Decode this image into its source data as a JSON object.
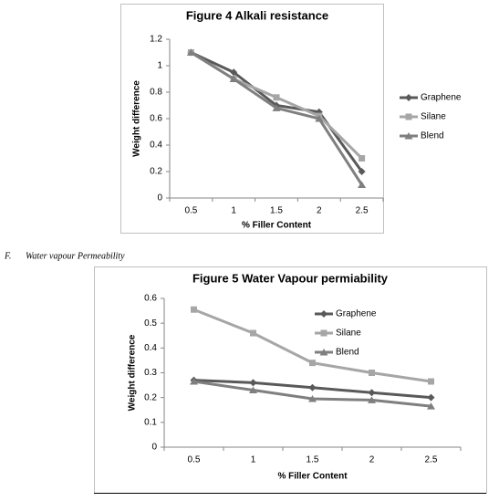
{
  "section_heading": {
    "label": "F.",
    "text": "Water vapour Permeability"
  },
  "chart_data": [
    {
      "type": "line",
      "title": "Figure 4 Alkali resistance",
      "x_label": "% Filler Content",
      "y_label": "Weight difference",
      "categories": [
        "0.5",
        "1",
        "1.5",
        "2",
        "2.5"
      ],
      "ylim": [
        0,
        1.2
      ],
      "yticks": [
        0,
        0.2,
        0.4,
        0.6,
        0.8,
        1,
        1.2
      ],
      "legend": "right",
      "series": [
        {
          "name": "Graphene",
          "color": "#595959",
          "marker": "diamond",
          "values": [
            1.1,
            0.95,
            0.7,
            0.65,
            0.2
          ]
        },
        {
          "name": "Silane",
          "color": "#a6a6a6",
          "marker": "square",
          "values": [
            1.1,
            0.9,
            0.76,
            0.62,
            0.3
          ]
        },
        {
          "name": "Blend",
          "color": "#7f7f7f",
          "marker": "triangle",
          "values": [
            1.1,
            0.9,
            0.68,
            0.6,
            0.1
          ]
        }
      ]
    },
    {
      "type": "line",
      "title": "Figure 5 Water  Vapour permiability",
      "x_label": "% Filler Content",
      "y_label": "Weight difference",
      "categories": [
        "0.5",
        "1",
        "1.5",
        "2",
        "2.5"
      ],
      "ylim": [
        0,
        0.6
      ],
      "yticks": [
        0,
        0.1,
        0.2,
        0.3,
        0.4,
        0.5,
        0.6
      ],
      "legend": "top",
      "series": [
        {
          "name": "Graphene",
          "color": "#595959",
          "marker": "diamond",
          "values": [
            0.27,
            0.26,
            0.24,
            0.22,
            0.2
          ]
        },
        {
          "name": "Silane",
          "color": "#a6a6a6",
          "marker": "square",
          "values": [
            0.555,
            0.46,
            0.34,
            0.3,
            0.265
          ]
        },
        {
          "name": "Blend",
          "color": "#7f7f7f",
          "marker": "triangle",
          "values": [
            0.265,
            0.23,
            0.195,
            0.19,
            0.165
          ]
        }
      ]
    }
  ]
}
